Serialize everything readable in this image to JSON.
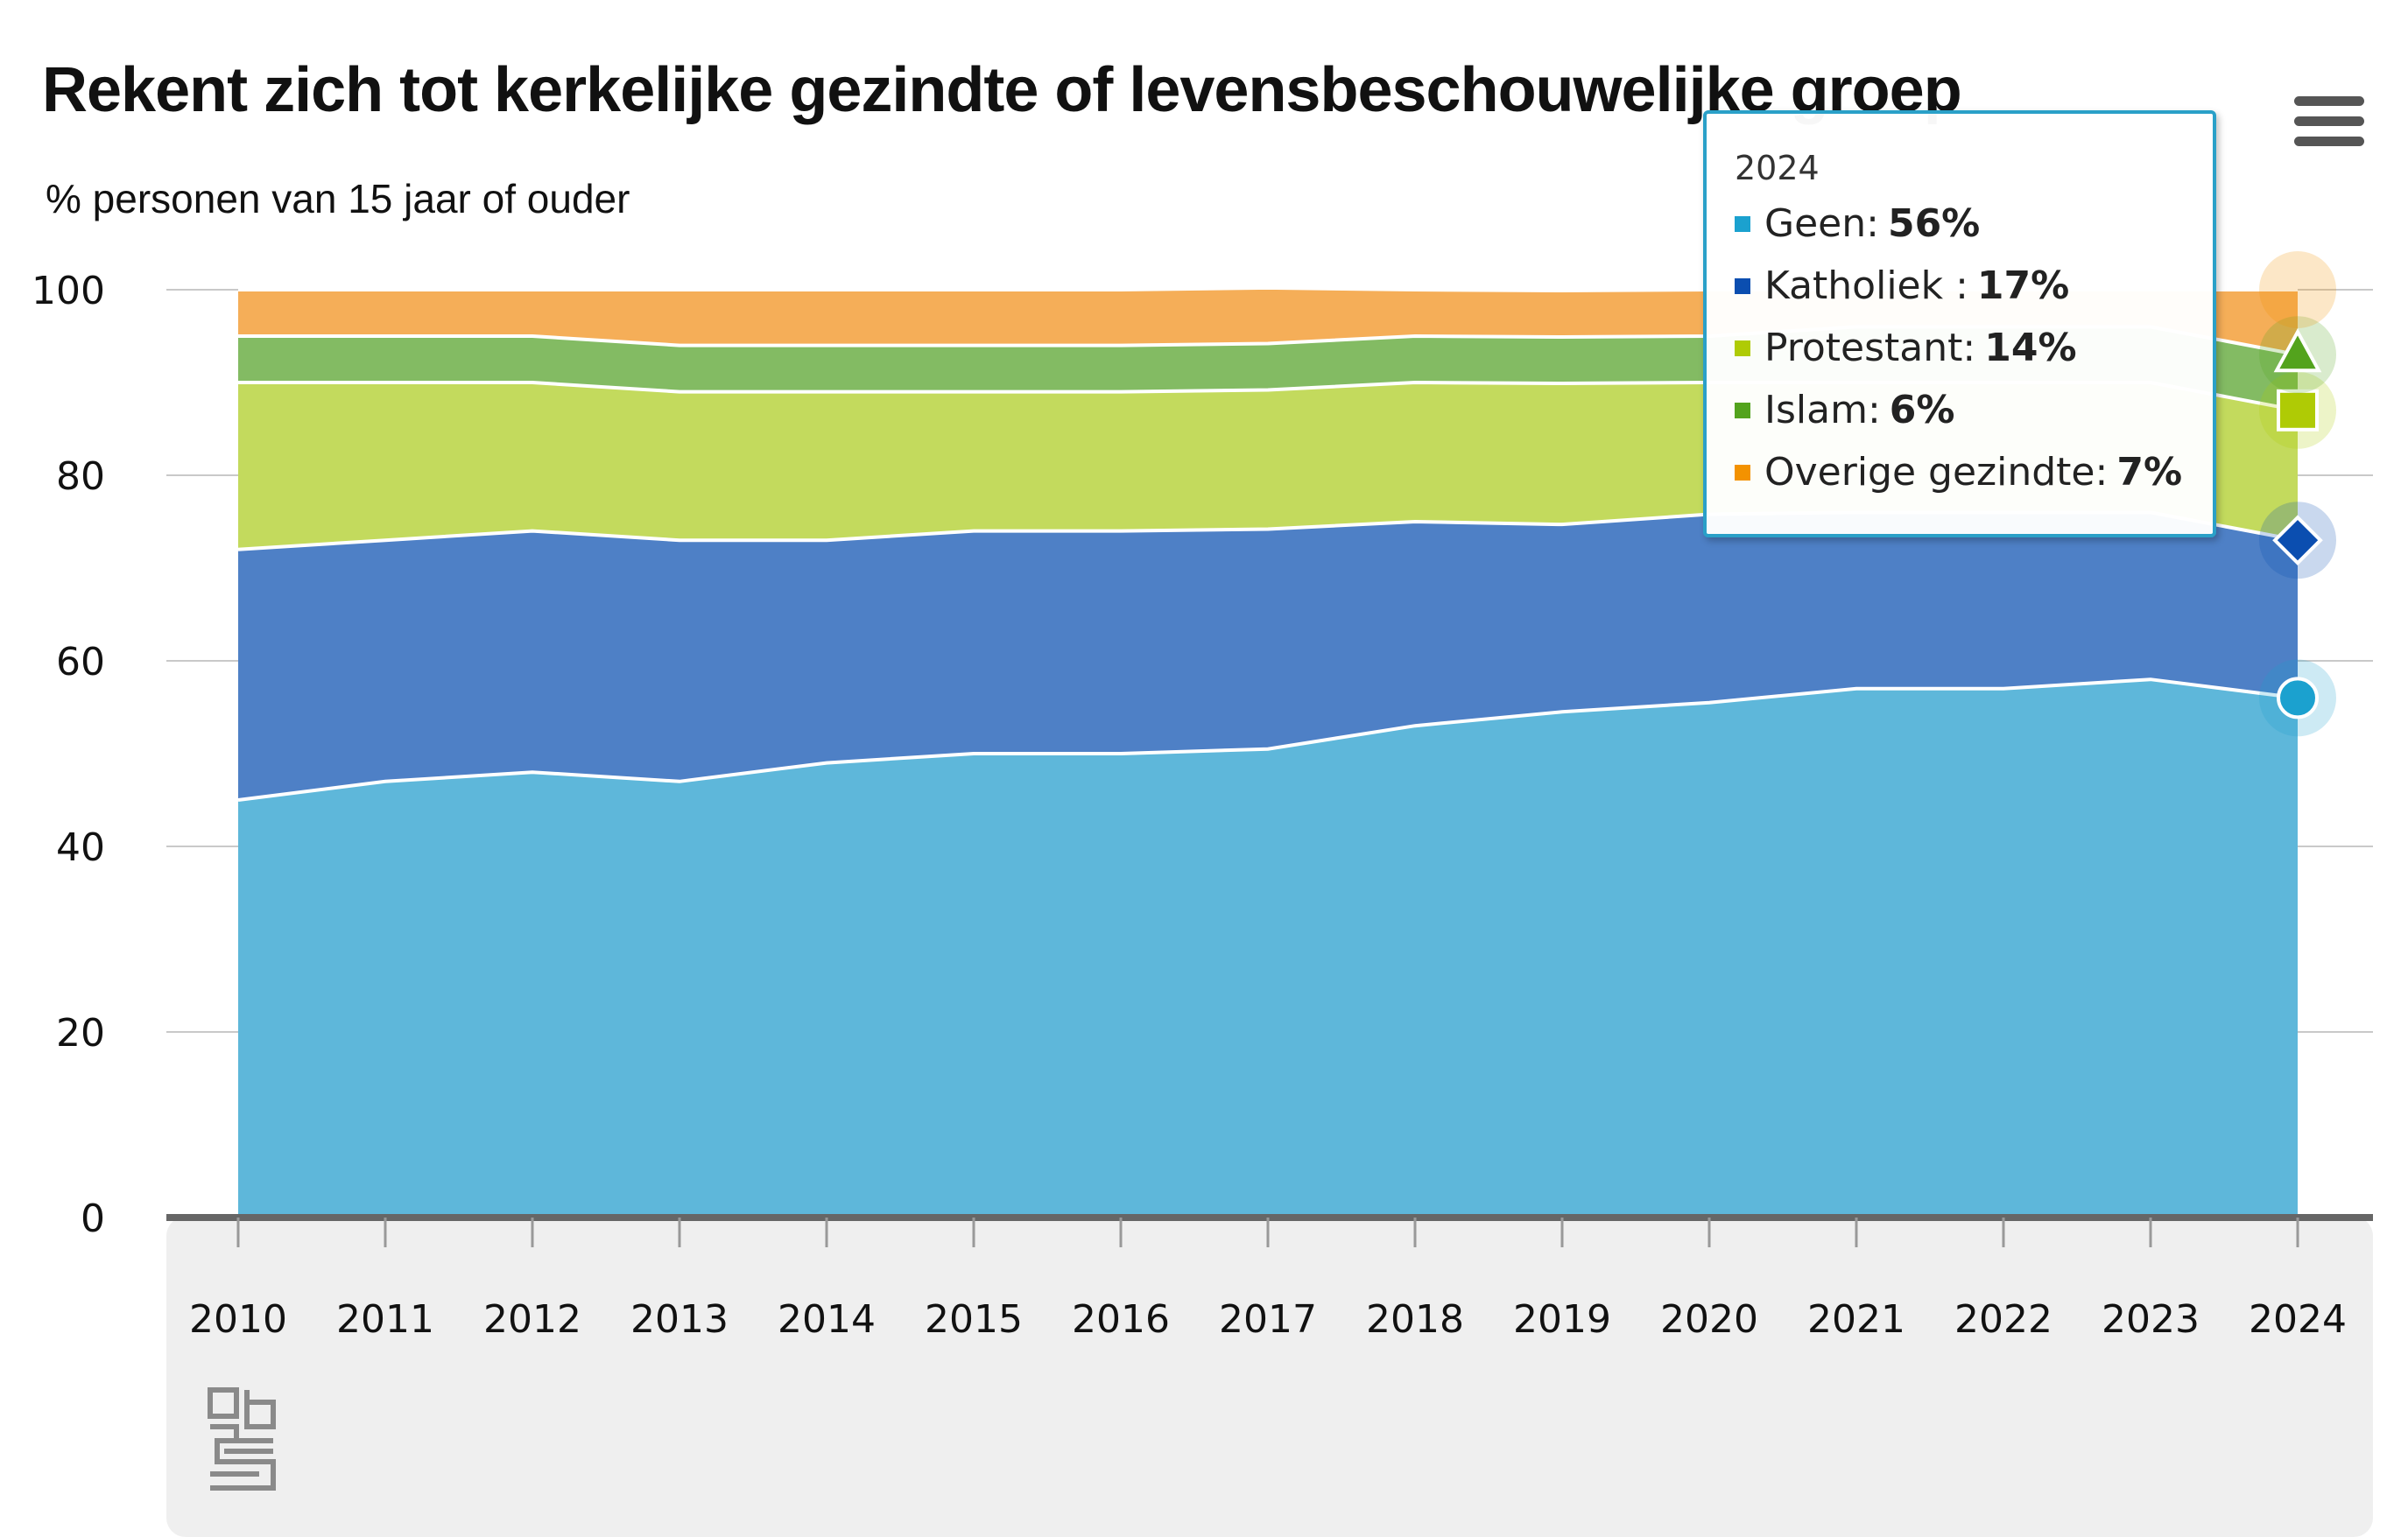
{
  "header": {
    "title": "Rekent zich tot kerkelijke gezindte of levensbeschouwelijke groep",
    "subtitle": "% personen van 15 jaar of ouder"
  },
  "menu": {
    "icon": "hamburger-menu-icon"
  },
  "logo": {
    "icon": "cbs-logo-icon"
  },
  "tooltip": {
    "year": "2024",
    "rows": [
      {
        "label": "Geen:",
        "value": "56%",
        "color": "#1ba1cf"
      },
      {
        "label": "Katholiek :",
        "value": "17%",
        "color": "#0b4eb0"
      },
      {
        "label": "Protestant:",
        "value": "14%",
        "color": "#afcb05"
      },
      {
        "label": "Islam:",
        "value": "6%",
        "color": "#53a31d"
      },
      {
        "label": "Overige gezindte:",
        "value": "7%",
        "color": "#f39200"
      }
    ]
  },
  "chart_data": {
    "type": "area",
    "stacked": true,
    "title": "Rekent zich tot kerkelijke gezindte of levensbeschouwelijke groep",
    "subtitle": "% personen van 15 jaar of ouder",
    "xlabel": "",
    "ylabel": "",
    "ylim": [
      0,
      100
    ],
    "yticks": [
      0,
      20,
      40,
      60,
      80,
      100
    ],
    "grid": true,
    "categories": [
      "2010",
      "2011",
      "2012",
      "2013",
      "2014",
      "2015",
      "2016",
      "2017",
      "2018",
      "2019",
      "2020",
      "2021",
      "2022",
      "2023",
      "2024"
    ],
    "series": [
      {
        "name": "Geen",
        "color": "#5eb7da",
        "values": [
          45,
          47,
          48,
          47,
          49,
          50,
          50,
          50.5,
          53,
          54.5,
          55.5,
          57,
          57,
          58,
          56
        ]
      },
      {
        "name": "Katholiek",
        "color": "#4e80c6",
        "values": [
          27,
          26,
          26,
          26,
          24,
          24,
          24,
          23.7,
          22,
          20.2,
          20.3,
          19,
          19,
          18,
          17
        ]
      },
      {
        "name": "Protestant",
        "color": "#c3da5d",
        "values": [
          18,
          17,
          16,
          16,
          16,
          15,
          15,
          15,
          15,
          15.2,
          14.2,
          14,
          14,
          14,
          14
        ]
      },
      {
        "name": "Islam",
        "color": "#83bb63",
        "values": [
          5,
          5,
          5,
          5,
          5,
          5,
          5,
          5,
          5,
          5,
          5,
          6,
          6,
          6,
          6
        ]
      },
      {
        "name": "Overige gezindte",
        "color": "#f5ae58",
        "values": [
          5,
          5,
          5,
          6,
          6,
          6,
          6,
          6,
          5,
          5,
          5,
          4,
          4,
          4,
          7
        ]
      }
    ],
    "highlight_category": "2024",
    "marker_colors": [
      "#1ba1cf",
      "#0b4eb0",
      "#afcb05",
      "#53a31d",
      "#f39200"
    ]
  }
}
